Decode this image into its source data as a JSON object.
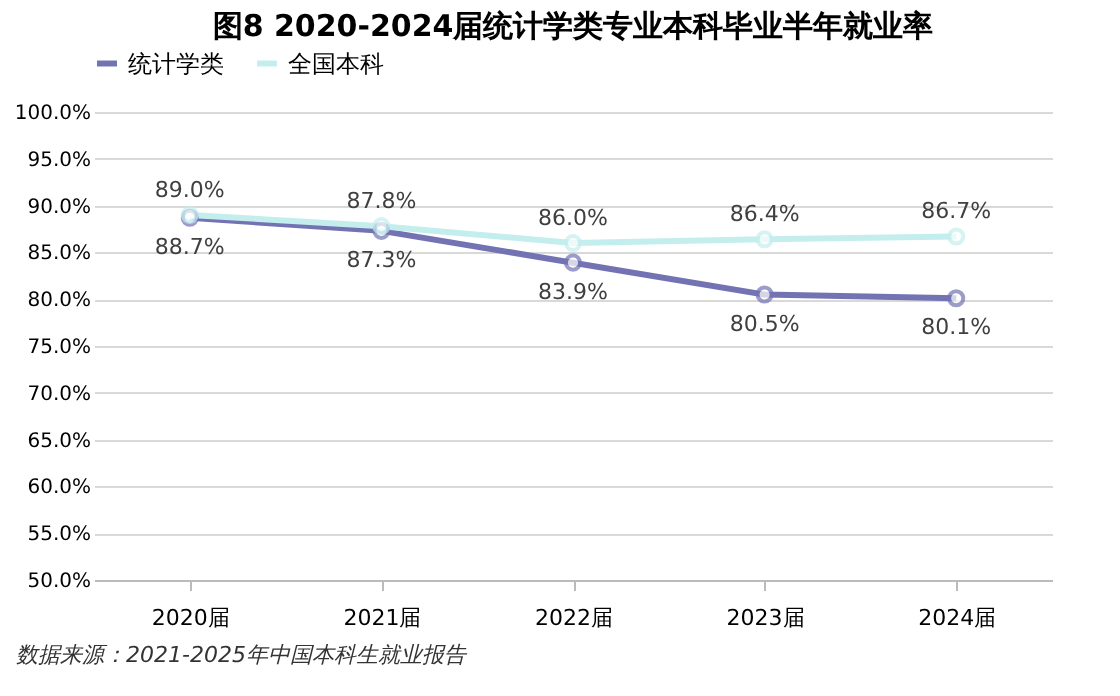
{
  "chart_data": {
    "type": "line",
    "title": "图8 2020-2024届统计学类专业本科毕业半年就业率",
    "categories": [
      "2020届",
      "2021届",
      "2022届",
      "2023届",
      "2024届"
    ],
    "series": [
      {
        "name": "统计学类",
        "color": "#7373b4",
        "values": [
          88.7,
          87.3,
          83.9,
          80.5,
          80.1
        ],
        "value_labels": [
          "88.7%",
          "87.3%",
          "83.9%",
          "80.5%",
          "80.1%"
        ]
      },
      {
        "name": "全国本科",
        "color": "#c4eeee",
        "values": [
          89.0,
          87.8,
          86.0,
          86.4,
          86.7
        ],
        "value_labels": [
          "89.0%",
          "87.8%",
          "86.0%",
          "86.4%",
          "86.7%"
        ]
      }
    ],
    "ylim": [
      50,
      100
    ],
    "yticks": [
      {
        "value": 50,
        "label": "50.0%"
      },
      {
        "value": 55,
        "label": "55.0%"
      },
      {
        "value": 60,
        "label": "60.0%"
      },
      {
        "value": 65,
        "label": "65.0%"
      },
      {
        "value": 70,
        "label": "70.0%"
      },
      {
        "value": 75,
        "label": "75.0%"
      },
      {
        "value": 80,
        "label": "80.0%"
      },
      {
        "value": 85,
        "label": "85.0%"
      },
      {
        "value": 90,
        "label": "90.0%"
      },
      {
        "value": 95,
        "label": "95.0%"
      },
      {
        "value": 100,
        "label": "100.0%"
      }
    ],
    "grid": "y",
    "legend": "top",
    "marker": "circle",
    "line_style": "solid",
    "annotations": [
      "数据来源：2021-2025年中国本科生就业报告"
    ]
  }
}
